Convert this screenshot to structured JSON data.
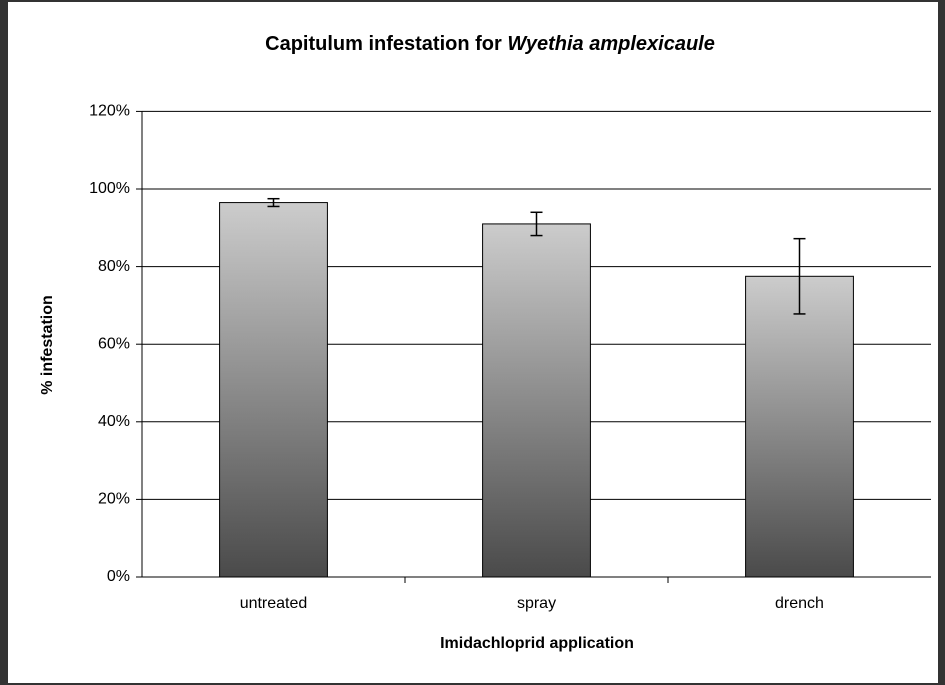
{
  "chart_data": {
    "type": "bar",
    "title": [
      "Capitulum infestation for",
      "Wyethia amplexicaule"
    ],
    "x_label": "Imidachloprid application",
    "y_label": "% infestation",
    "categories": [
      "untreated",
      "spray",
      "drench"
    ],
    "values": [
      96.5,
      91,
      77.5
    ],
    "errors": [
      1,
      3,
      9.7
    ],
    "gradient": [
      "#cccccc",
      "#4a4a4a"
    ],
    "ylim": [
      0,
      120
    ],
    "yticks": [
      {
        "value": 0,
        "label": "0%"
      },
      {
        "value": 20,
        "label": "20%"
      },
      {
        "value": 40,
        "label": "40%"
      },
      {
        "value": 60,
        "label": "60%"
      },
      {
        "value": 80,
        "label": "80%"
      },
      {
        "value": 100,
        "label": "100%"
      },
      {
        "value": 120,
        "label": "120%"
      }
    ],
    "grid": true
  }
}
